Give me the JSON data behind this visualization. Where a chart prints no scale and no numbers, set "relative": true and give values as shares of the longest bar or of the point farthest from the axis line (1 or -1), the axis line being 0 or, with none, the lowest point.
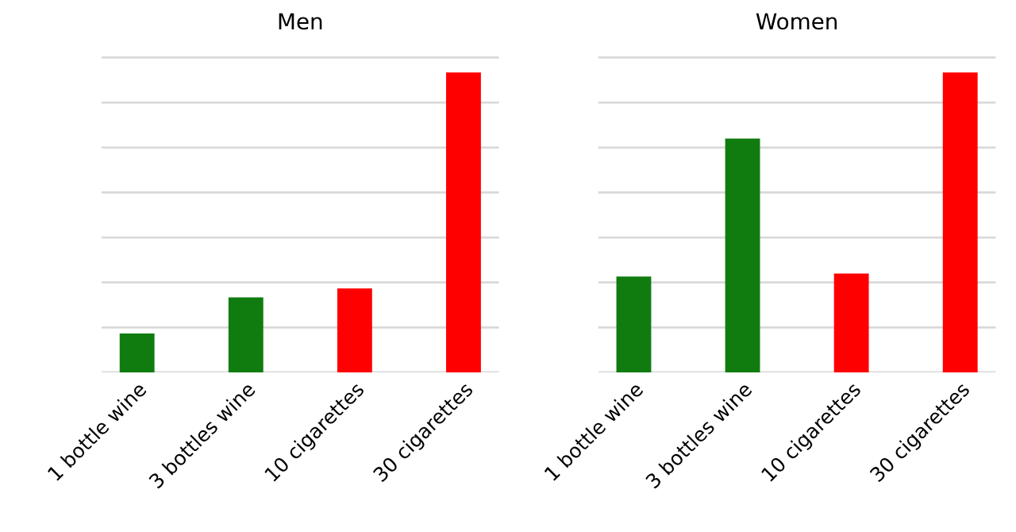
{
  "chart_data": [
    {
      "type": "bar",
      "title": "Men",
      "relative": true,
      "grid": "y",
      "categories": [
        "1 bottle wine",
        "3 bottles wine",
        "10 cigarettes",
        "30 cigarettes"
      ],
      "values": [
        0.13,
        0.25,
        0.28,
        1
      ],
      "colors": [
        "#107c10",
        "#107c10",
        "#ff0000",
        "#ff0000"
      ]
    },
    {
      "type": "bar",
      "title": "Women",
      "relative": true,
      "grid": "y",
      "categories": [
        "1 bottle wine",
        "3 bottles wine",
        "10 cigarettes",
        "30 cigarettes"
      ],
      "values": [
        0.32,
        0.78,
        0.33,
        1
      ],
      "colors": [
        "#107c10",
        "#107c10",
        "#ff0000",
        "#ff0000"
      ]
    }
  ]
}
